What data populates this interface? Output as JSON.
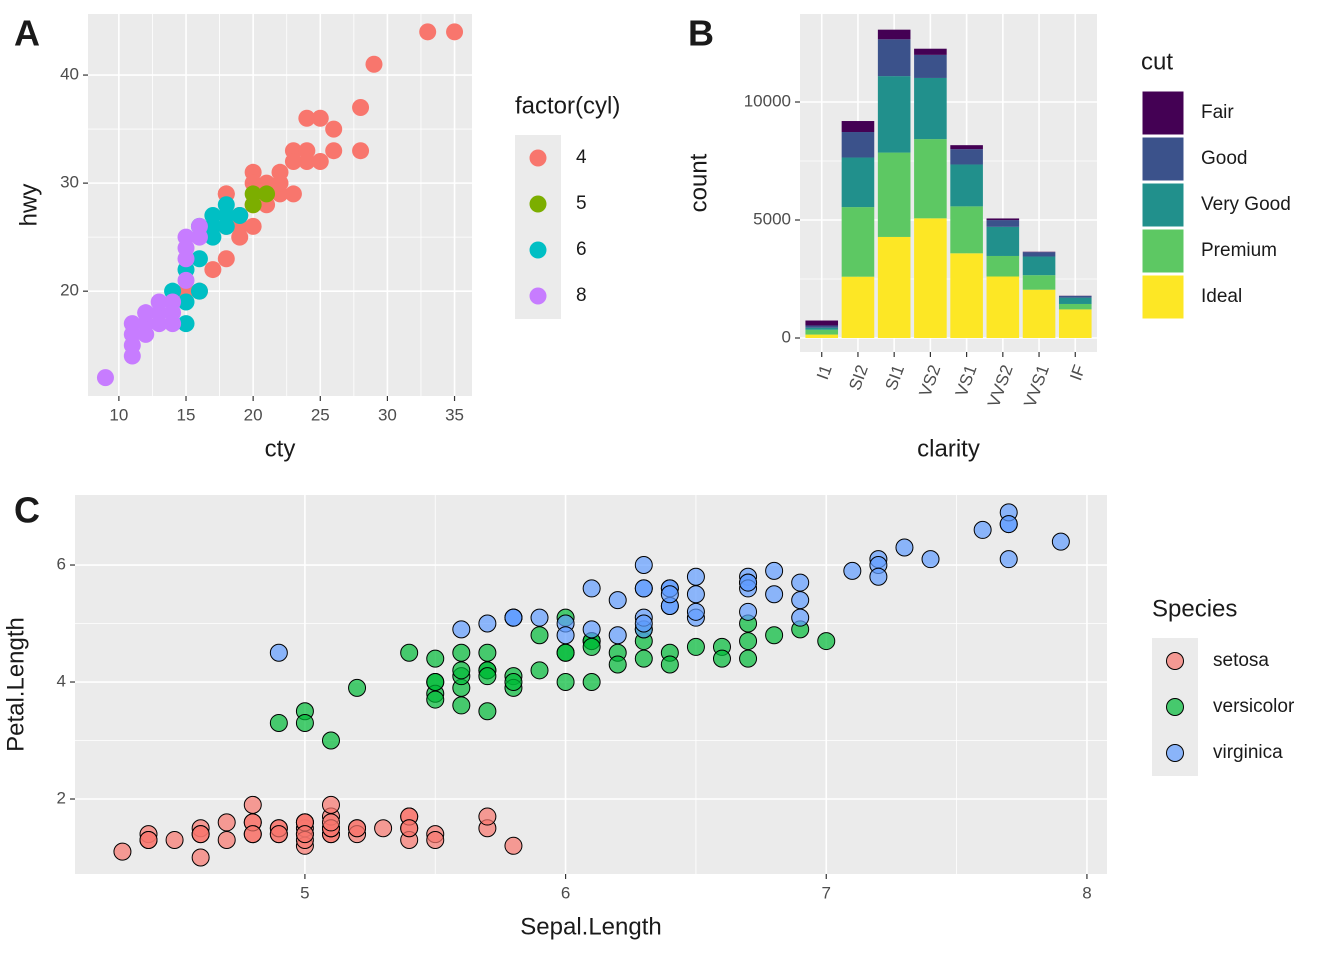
{
  "chart_data": [
    {
      "type": "scatter",
      "tag": "A",
      "x_label": "cty",
      "y_label": "hwy",
      "legend_title": "factor(cyl)",
      "xlim": [
        7.7,
        36.3
      ],
      "xticks": [
        10,
        15,
        20,
        25,
        30,
        35
      ],
      "ylim": [
        10.3,
        45.65
      ],
      "yticks": [
        20,
        30,
        40
      ],
      "grid": true,
      "alpha": 1,
      "series": [
        {
          "name": "4",
          "color": "#f8766d",
          "x": [
            18,
            21,
            20,
            21,
            18,
            18,
            19,
            21,
            22,
            21,
            24,
            25,
            23,
            24,
            26,
            26,
            28,
            28,
            29,
            33,
            35,
            19,
            20,
            22,
            23,
            24,
            25,
            19,
            15,
            17,
            20,
            21,
            22,
            23,
            18,
            16,
            19,
            20
          ],
          "values": [
            29,
            29,
            31,
            30,
            26,
            29,
            27,
            29,
            31,
            29,
            36,
            36,
            33,
            33,
            35,
            33,
            37,
            33,
            41,
            44,
            44,
            26,
            26,
            29,
            29,
            32,
            32,
            25,
            20,
            22,
            28,
            28,
            30,
            32,
            23,
            20,
            27,
            30
          ]
        },
        {
          "name": "5",
          "color": "#7cae00",
          "x": [
            20,
            20,
            21
          ],
          "values": [
            28,
            29,
            29
          ]
        },
        {
          "name": "6",
          "color": "#00bfc4",
          "x": [
            16,
            17,
            18,
            15,
            15,
            16,
            14,
            15,
            16,
            17,
            18,
            19,
            17,
            18
          ],
          "values": [
            26,
            27,
            27,
            17,
            19,
            20,
            20,
            22,
            23,
            26,
            26,
            27,
            25,
            28
          ]
        },
        {
          "name": "8",
          "color": "#c77cff",
          "x": [
            9,
            11,
            11,
            11,
            12,
            12,
            12,
            13,
            13,
            13,
            14,
            14,
            15,
            15,
            15,
            15,
            16,
            16,
            14,
            11,
            12
          ],
          "values": [
            12,
            15,
            16,
            17,
            16,
            17,
            18,
            17,
            18,
            19,
            17,
            19,
            21,
            23,
            24,
            25,
            25,
            26,
            18,
            14,
            18
          ]
        }
      ]
    },
    {
      "type": "bar",
      "tag": "B",
      "x_label": "clarity",
      "y_label": "count",
      "legend_title": "cut",
      "stacked": true,
      "categories": [
        "I1",
        "SI2",
        "SI1",
        "VS2",
        "VS1",
        "VVS2",
        "VVS1",
        "IF"
      ],
      "ylim": [
        -593,
        13729
      ],
      "yticks": [
        0,
        5000,
        10000
      ],
      "grid": true,
      "series": [
        {
          "name": "Fair",
          "color": "#440154",
          "values": [
            210,
            466,
            408,
            261,
            170,
            69,
            17,
            9
          ]
        },
        {
          "name": "Good",
          "color": "#3b528b",
          "values": [
            96,
            1081,
            1560,
            978,
            648,
            286,
            186,
            71
          ]
        },
        {
          "name": "Very Good",
          "color": "#21908c",
          "values": [
            84,
            2100,
            3240,
            2591,
            1775,
            1235,
            789,
            268
          ]
        },
        {
          "name": "Premium",
          "color": "#5dc863",
          "values": [
            205,
            2949,
            3575,
            3357,
            1989,
            870,
            616,
            230
          ]
        },
        {
          "name": "Ideal",
          "color": "#fde725",
          "values": [
            146,
            2598,
            4282,
            5071,
            3589,
            2606,
            2047,
            1212
          ]
        }
      ]
    },
    {
      "type": "scatter",
      "tag": "C",
      "x_label": "Sepal.Length",
      "y_label": "Petal.Length",
      "legend_title": "Species",
      "xlim": [
        4.118,
        8.077
      ],
      "xticks": [
        5,
        6,
        7,
        8
      ],
      "ylim": [
        0.718,
        7.197
      ],
      "yticks": [
        2,
        4,
        6
      ],
      "grid": true,
      "alpha": 0.7,
      "marker_edge": "#000000",
      "series": [
        {
          "name": "setosa",
          "color": "#f8766d",
          "x": [
            5.1,
            4.9,
            4.7,
            4.6,
            5.0,
            5.4,
            4.6,
            5.0,
            4.4,
            4.9,
            5.4,
            4.8,
            4.8,
            4.3,
            5.8,
            5.7,
            5.4,
            5.1,
            5.7,
            5.1,
            5.4,
            5.1,
            4.6,
            5.1,
            4.8,
            5.0,
            5.0,
            5.2,
            5.2,
            4.7,
            4.8,
            5.4,
            5.2,
            5.5,
            4.9,
            5.0,
            5.5,
            4.9,
            4.4,
            5.1,
            5.0,
            4.5,
            4.4,
            5.0,
            5.1,
            4.8,
            5.1,
            4.6,
            5.3,
            5.0
          ],
          "values": [
            1.4,
            1.4,
            1.3,
            1.5,
            1.4,
            1.7,
            1.4,
            1.5,
            1.4,
            1.5,
            1.5,
            1.6,
            1.4,
            1.1,
            1.2,
            1.5,
            1.3,
            1.4,
            1.7,
            1.5,
            1.7,
            1.5,
            1.0,
            1.7,
            1.9,
            1.6,
            1.6,
            1.5,
            1.4,
            1.6,
            1.6,
            1.5,
            1.5,
            1.4,
            1.5,
            1.2,
            1.3,
            1.4,
            1.3,
            1.5,
            1.3,
            1.3,
            1.3,
            1.6,
            1.9,
            1.4,
            1.6,
            1.4,
            1.5,
            1.4
          ]
        },
        {
          "name": "versicolor",
          "color": "#00ba38",
          "x": [
            7.0,
            6.4,
            6.9,
            5.5,
            6.5,
            5.7,
            6.3,
            4.9,
            6.6,
            5.2,
            5.0,
            5.9,
            6.0,
            6.1,
            5.6,
            6.7,
            5.6,
            5.8,
            6.2,
            5.6,
            5.9,
            6.1,
            6.3,
            6.1,
            6.4,
            6.6,
            6.8,
            6.7,
            6.0,
            5.7,
            5.5,
            5.5,
            5.8,
            6.0,
            5.4,
            6.0,
            6.7,
            6.3,
            5.6,
            5.5,
            5.5,
            6.1,
            5.8,
            5.0,
            5.6,
            5.7,
            5.7,
            6.2,
            5.1,
            5.7
          ],
          "values": [
            4.7,
            4.5,
            4.9,
            4.0,
            4.6,
            4.5,
            4.7,
            3.3,
            4.6,
            3.9,
            3.5,
            4.2,
            4.0,
            4.7,
            3.6,
            4.4,
            4.5,
            4.1,
            4.5,
            3.9,
            4.8,
            4.0,
            4.9,
            4.7,
            4.3,
            4.4,
            4.8,
            5.0,
            4.5,
            3.5,
            3.8,
            3.7,
            3.9,
            5.1,
            4.5,
            4.5,
            4.7,
            4.4,
            4.1,
            4.0,
            4.4,
            4.6,
            4.0,
            3.3,
            4.2,
            4.2,
            4.2,
            4.3,
            3.0,
            4.1
          ]
        },
        {
          "name": "virginica",
          "color": "#619cff",
          "x": [
            6.3,
            5.8,
            7.1,
            6.3,
            6.5,
            7.6,
            4.9,
            7.3,
            6.7,
            7.2,
            6.5,
            6.4,
            6.8,
            5.7,
            5.8,
            6.4,
            6.5,
            7.7,
            7.7,
            6.0,
            6.9,
            5.6,
            7.7,
            6.3,
            6.7,
            7.2,
            6.2,
            6.1,
            6.4,
            7.2,
            7.4,
            7.9,
            6.4,
            6.3,
            6.1,
            7.7,
            6.3,
            6.4,
            6.0,
            6.9,
            6.7,
            6.9,
            5.8,
            6.8,
            6.7,
            6.7,
            6.3,
            6.5,
            6.2,
            5.9
          ],
          "values": [
            6.0,
            5.1,
            5.9,
            5.6,
            5.8,
            6.6,
            4.5,
            6.3,
            5.8,
            6.1,
            5.1,
            5.3,
            5.5,
            5.0,
            5.1,
            5.3,
            5.5,
            6.7,
            6.9,
            5.0,
            5.7,
            4.9,
            6.7,
            4.9,
            5.7,
            6.0,
            4.8,
            4.9,
            5.6,
            5.8,
            6.1,
            6.4,
            5.6,
            5.1,
            5.6,
            6.1,
            5.6,
            5.5,
            4.8,
            5.4,
            5.6,
            5.1,
            5.1,
            5.9,
            5.7,
            5.2,
            5.0,
            5.2,
            5.4,
            5.1
          ]
        }
      ]
    }
  ]
}
